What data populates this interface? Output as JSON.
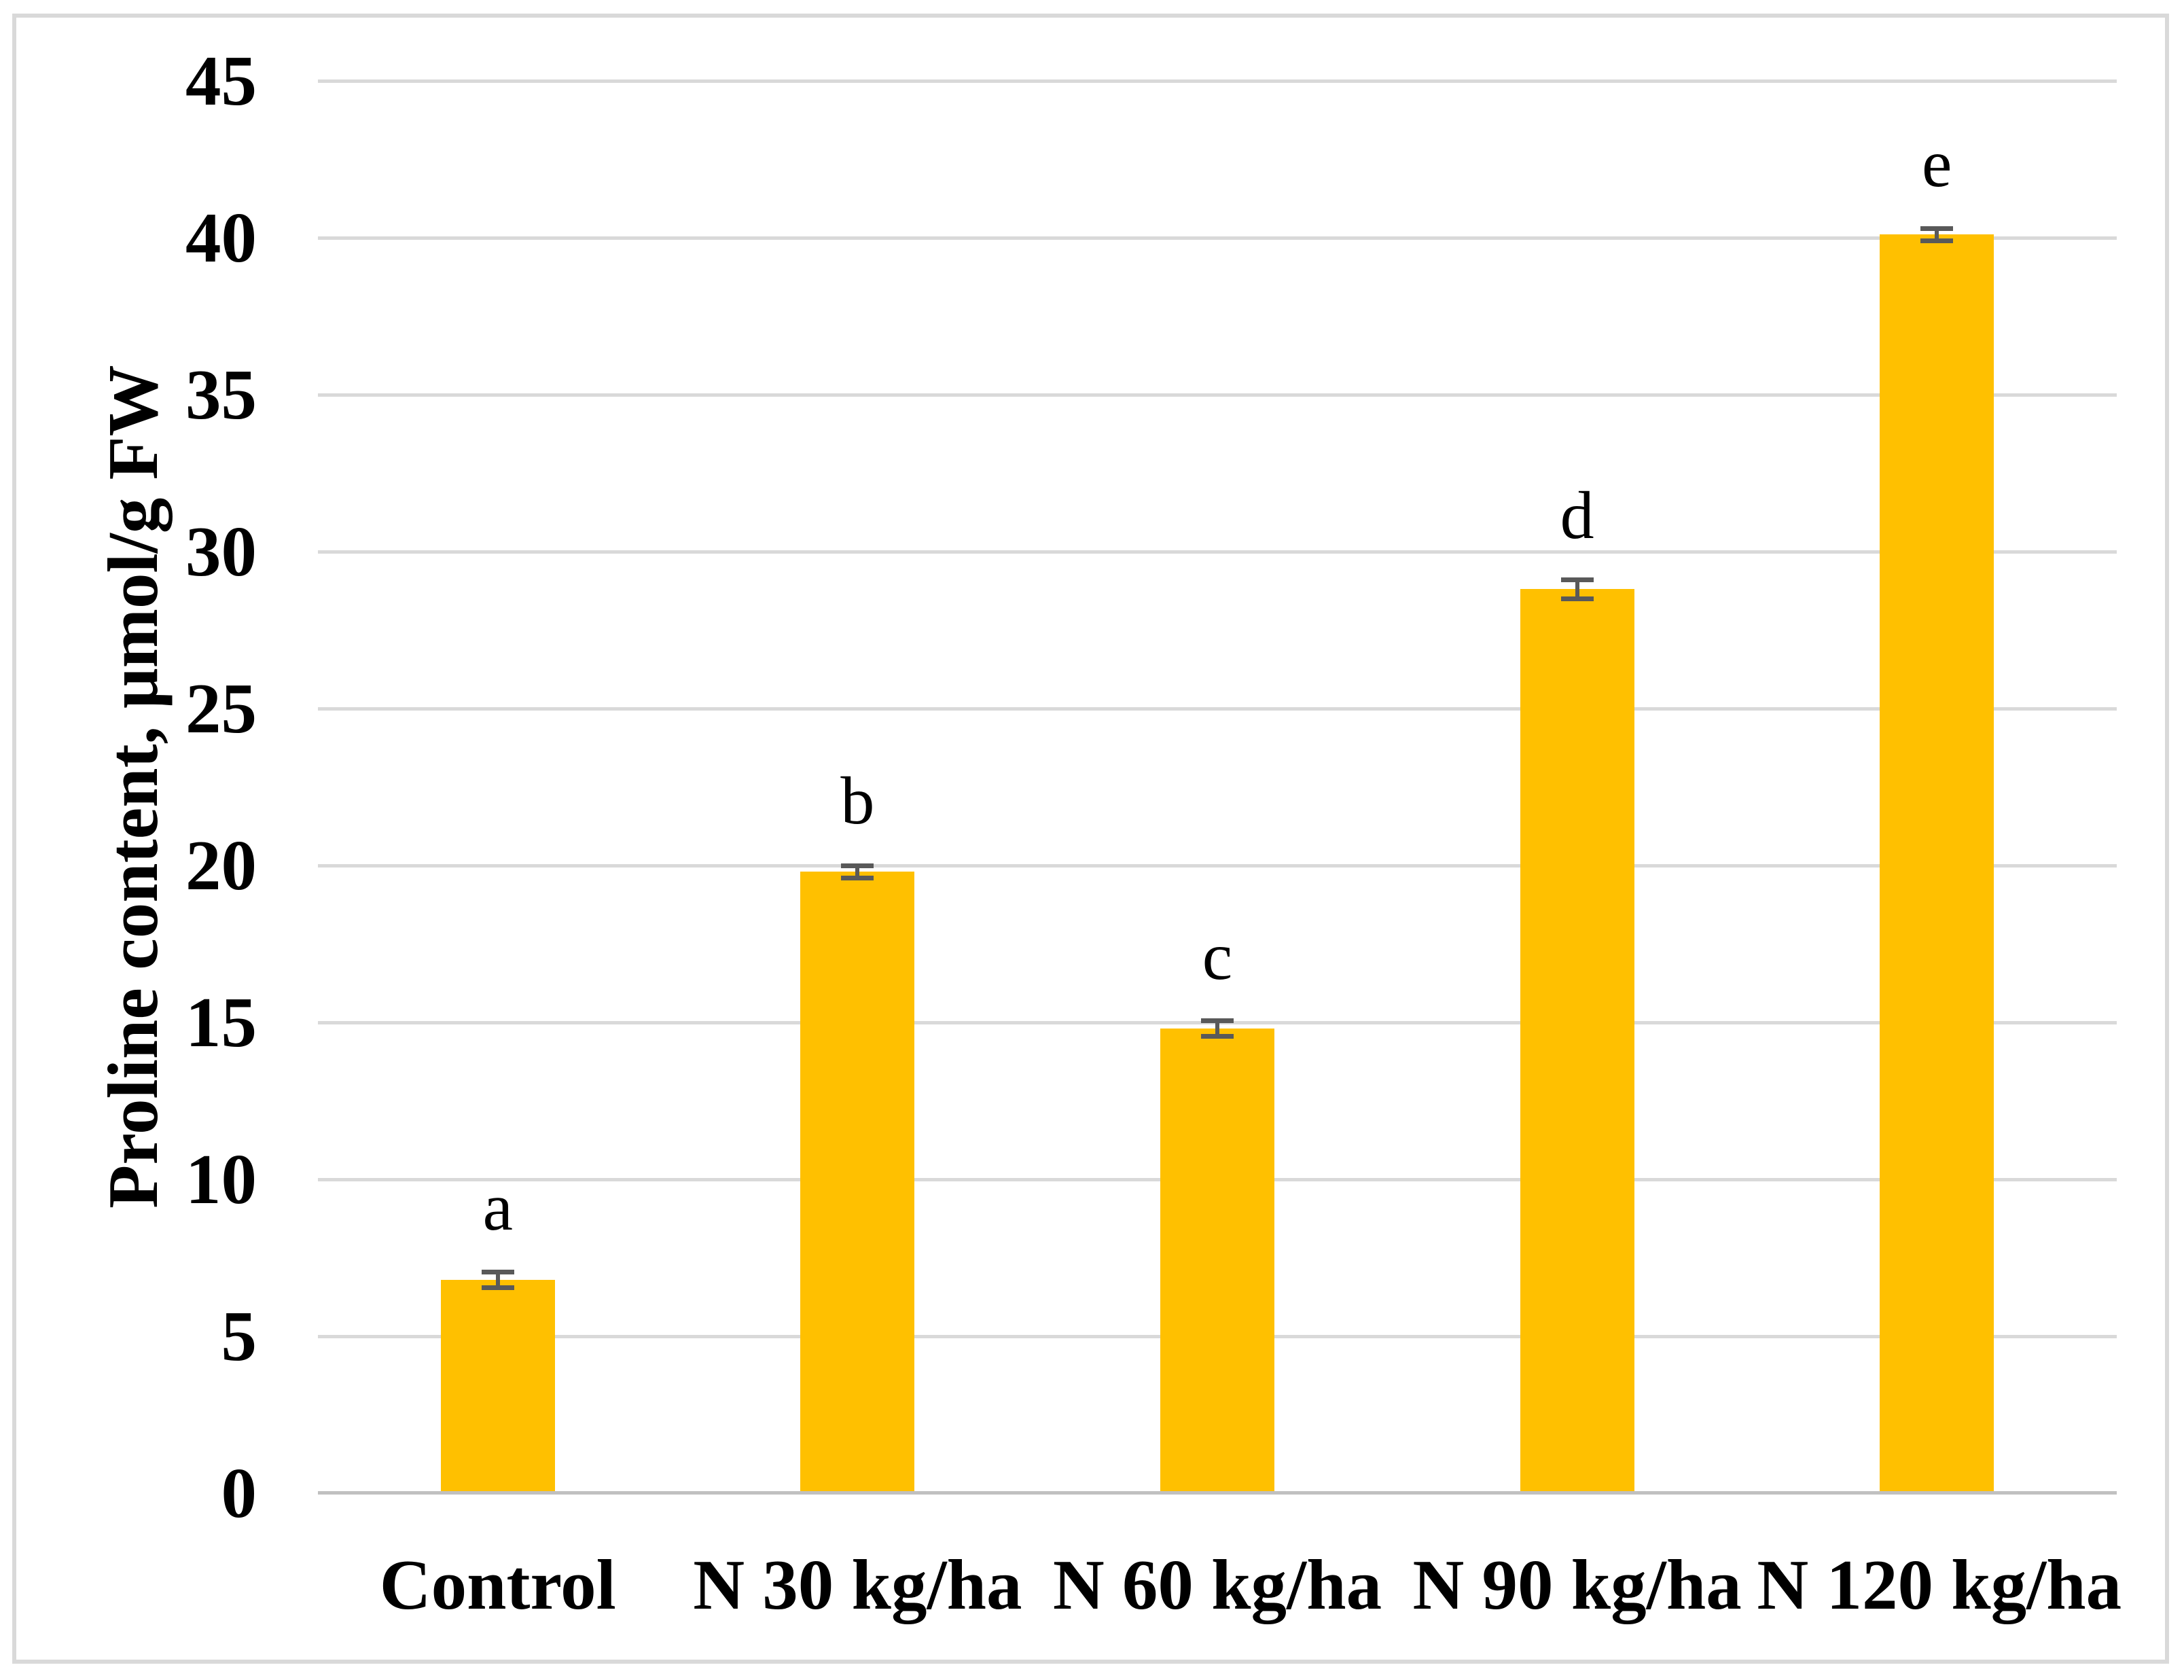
{
  "page": {
    "background": "#FFFFFF",
    "border_color": "#D9D9D9"
  },
  "chart_data": {
    "type": "bar",
    "title": "",
    "xlabel": "",
    "ylabel": "Proline content, μmol/g FW",
    "ylim": [
      0,
      45
    ],
    "yticks": [
      0,
      5,
      10,
      15,
      20,
      25,
      30,
      35,
      40,
      45
    ],
    "grid": true,
    "legend_position": "none",
    "categories": [
      "Control",
      "N 30 kg/ha",
      "N 60 kg/ha",
      "N 90 kg/ha",
      "N 120 kg/ha"
    ],
    "series": [
      {
        "name": "Proline content",
        "values": [
          6.8,
          19.8,
          14.8,
          28.8,
          40.1
        ],
        "errors": [
          0.25,
          0.2,
          0.25,
          0.3,
          0.2
        ],
        "significance_letters": [
          "a",
          "b",
          "c",
          "d",
          "e"
        ]
      }
    ],
    "colors": {
      "bar": "#FFC000",
      "error_bar": "#595959",
      "gridline": "#D9D9D9",
      "axis_line": "#C0C0C0",
      "text": "#000000"
    }
  }
}
